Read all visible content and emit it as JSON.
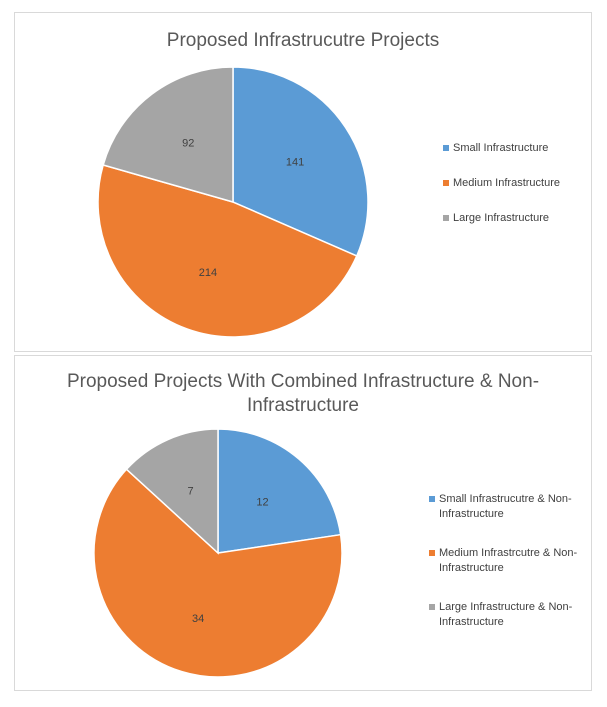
{
  "chart_data": [
    {
      "type": "pie",
      "title": "Proposed Infrastrucutre Projects",
      "categories": [
        "Small Infrastructure",
        "Medium Infrastructure",
        "Large Infrastructure"
      ],
      "values": [
        141,
        214,
        92
      ],
      "colors": [
        "#5b9bd5",
        "#ed7d31",
        "#a5a5a5"
      ],
      "legend_position": "right"
    },
    {
      "type": "pie",
      "title": "Proposed Projects With Combined Infrastructure & Non-Infrastructure",
      "categories": [
        "Small Infrastrucutre & Non-Infrastructure",
        "Medium Infrastrcutre & Non-Infrastructure",
        "Large Infrastructure & Non-Infrastructure"
      ],
      "values": [
        12,
        34,
        7
      ],
      "colors": [
        "#5b9bd5",
        "#ed7d31",
        "#a5a5a5"
      ],
      "legend_position": "right"
    }
  ]
}
